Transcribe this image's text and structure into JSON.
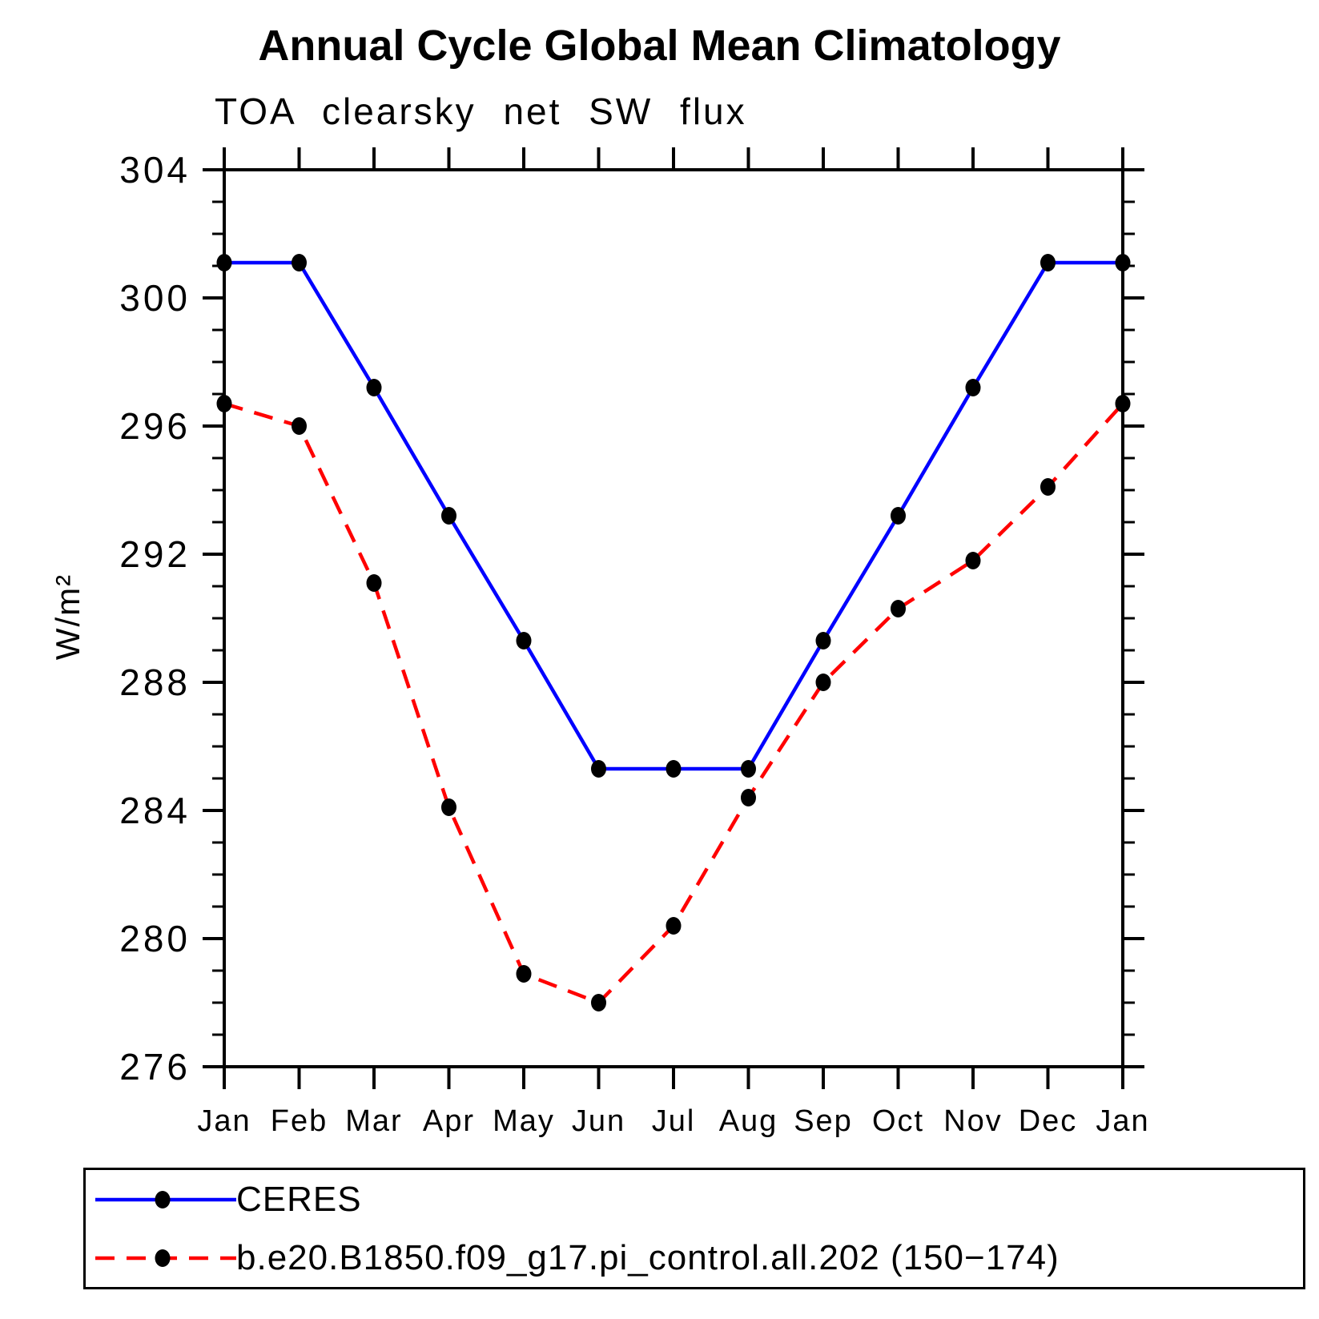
{
  "chart_data": {
    "type": "line",
    "title": "Annual Cycle Global Mean Climatology",
    "subtitle": "TOA clearsky net SW flux",
    "ylabel": "W/m²",
    "x_tick_labels": [
      "Jan",
      "Feb",
      "Mar",
      "Apr",
      "May",
      "Jun",
      "Jul",
      "Aug",
      "Sep",
      "Oct",
      "Nov",
      "Dec",
      "Jan"
    ],
    "ylim": [
      276,
      304
    ],
    "y_major_ticks": [
      276,
      280,
      284,
      288,
      292,
      296,
      300,
      304
    ],
    "y_minor_step": 1,
    "grid": false,
    "legend_position": "bottom",
    "marker_color": "#000000",
    "axis_color": "#000000",
    "series": [
      {
        "name": "CERES",
        "color": "#0000ff",
        "style": "solid",
        "values": [
          301.1,
          301.1,
          297.2,
          293.2,
          289.3,
          285.3,
          285.3,
          285.3,
          289.3,
          293.2,
          297.2,
          301.1,
          301.1
        ]
      },
      {
        "name": "b.e20.B1850.f09_g17.pi_control.all.202 (150−174)",
        "color": "#ff0000",
        "style": "dashed",
        "values": [
          296.7,
          296.0,
          291.1,
          284.1,
          278.9,
          278.0,
          280.4,
          284.4,
          288.0,
          290.3,
          291.8,
          294.1,
          296.7
        ]
      }
    ]
  }
}
